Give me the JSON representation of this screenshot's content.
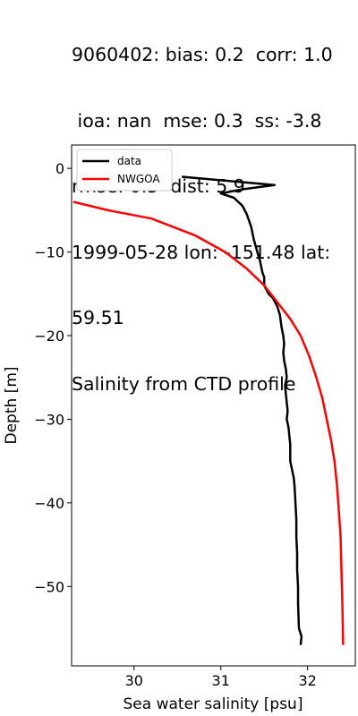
{
  "chart_data": {
    "type": "line",
    "title_lines": [
      "9060402: bias: 0.2  corr: 1.0",
      " ioa: nan  mse: 0.3  ss: -3.8",
      "rmse: 0.5  dist: 5.9",
      "1999-05-28 lon: -151.48 lat:",
      "59.51",
      "Salinity from CTD profile"
    ],
    "xlabel": "Sea water salinity [psu]",
    "ylabel": "Depth [m]",
    "xlim": [
      29.28,
      32.55
    ],
    "ylim": [
      -59.5,
      2.8
    ],
    "xticks": [
      30,
      31,
      32
    ],
    "yticks": [
      0,
      -10,
      -20,
      -30,
      -40,
      -50
    ],
    "ytick_labels": [
      "0",
      "−10",
      "−20",
      "−30",
      "−40",
      "−50"
    ],
    "legend_position": "upper left",
    "series": [
      {
        "name": "data",
        "color": "#000000",
        "x": [
          30.55,
          31.1,
          31.62,
          31.25,
          31.0,
          31.15,
          31.25,
          31.3,
          31.35,
          31.38,
          31.42,
          31.45,
          31.47,
          31.48,
          31.5,
          31.5,
          31.55,
          31.6,
          31.65,
          31.68,
          31.7,
          31.72,
          31.73,
          31.72,
          31.73,
          31.75,
          31.76,
          31.74,
          31.75,
          31.76,
          31.77,
          31.76,
          31.78,
          31.79,
          31.8,
          31.8,
          31.8,
          31.82,
          31.84,
          31.85,
          31.86,
          31.87,
          31.87,
          31.88,
          31.88,
          31.89,
          31.89,
          31.9,
          31.93,
          31.92
        ],
        "y": [
          -1,
          -1.5,
          -2,
          -2.5,
          -3,
          -3.5,
          -4.5,
          -5.5,
          -7,
          -8.5,
          -10,
          -11,
          -12,
          -12.5,
          -13,
          -14,
          -15,
          -15.5,
          -16.5,
          -17.5,
          -19,
          -20,
          -21,
          -22,
          -23,
          -24,
          -25,
          -26,
          -27,
          -28,
          -29,
          -30,
          -31,
          -32,
          -33,
          -34,
          -35,
          -36,
          -37,
          -38,
          -40,
          -42,
          -44,
          -46,
          -48,
          -50,
          -52,
          -55,
          -56,
          -57
        ]
      },
      {
        "name": "NWGOA",
        "color": "#ff0000",
        "x": [
          29.3,
          29.7,
          30.2,
          30.7,
          31.05,
          31.3,
          31.5,
          31.65,
          31.8,
          31.92,
          32.02,
          32.1,
          32.17,
          32.22,
          32.27,
          32.31,
          32.34,
          32.36,
          32.38,
          32.39,
          32.4,
          32.41
        ],
        "y": [
          -4,
          -5,
          -6,
          -8,
          -10,
          -12,
          -14,
          -16,
          -18,
          -20,
          -22.5,
          -25,
          -27.5,
          -30,
          -32.5,
          -35,
          -38,
          -41,
          -44,
          -48,
          -52,
          -57
        ]
      }
    ]
  }
}
